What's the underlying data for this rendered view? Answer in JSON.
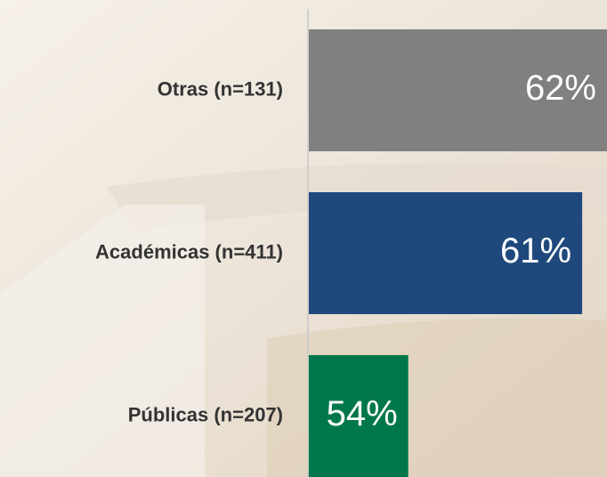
{
  "chart_data": {
    "type": "bar",
    "orientation": "horizontal",
    "categories": [
      "Otras (n=131)",
      "Académicas (n=411)",
      "Públicas (n=207)"
    ],
    "values": [
      62,
      61,
      54
    ],
    "value_labels": [
      "62%",
      "61%",
      "54%"
    ],
    "colors": [
      "#808080",
      "#1f497d",
      "#00774a"
    ],
    "xlim": [
      50,
      62
    ]
  }
}
